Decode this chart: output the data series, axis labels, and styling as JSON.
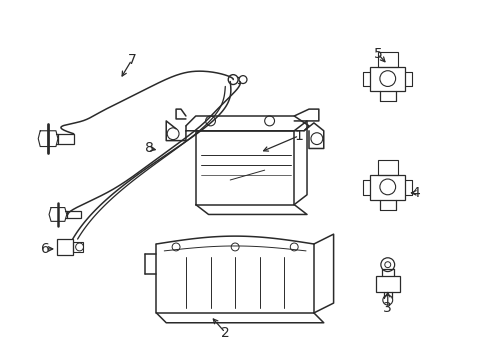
{
  "background_color": "#ffffff",
  "line_color": "#2a2a2a",
  "line_width": 1.1,
  "figsize": [
    4.89,
    3.6
  ],
  "dpi": 100,
  "label_fontsize": 10
}
